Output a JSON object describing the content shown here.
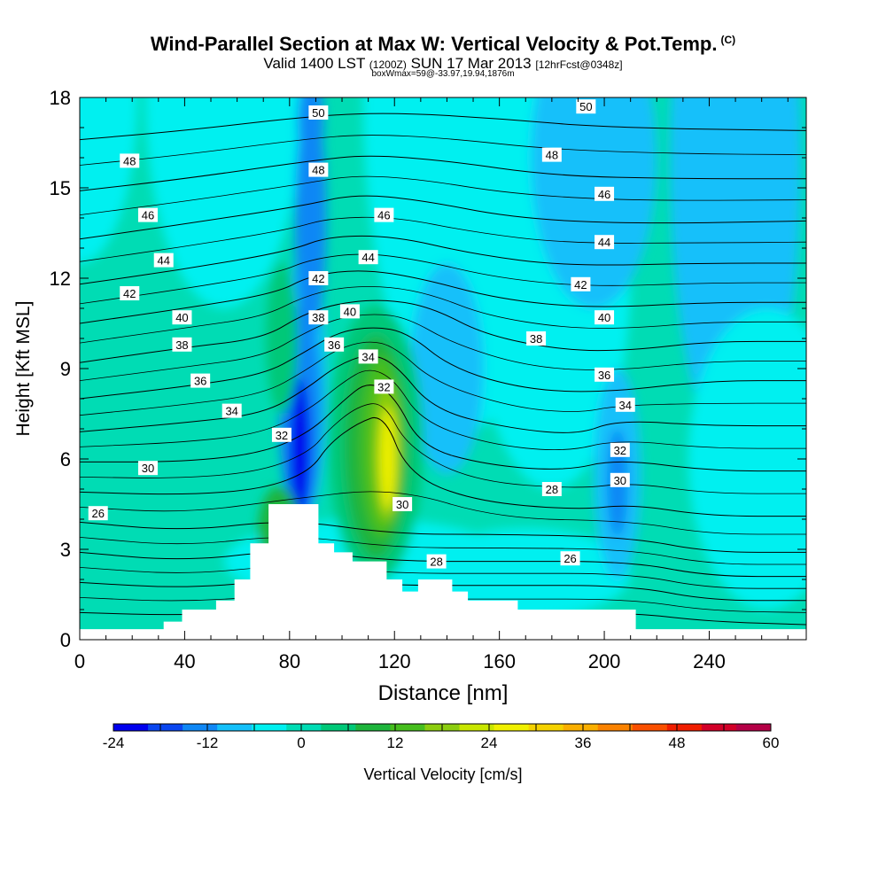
{
  "header": {
    "title": "Wind-Parallel Section at Max W: Vertical Velocity & Pot.Temp.",
    "title_tag": "(C)",
    "valid_main": "Valid 1400 LST",
    "valid_zulu": "(1200Z)",
    "valid_date": "SUN 17 Mar 2013",
    "forecast": "[12hrFcst@0348z]",
    "box_info": "boxWmax=59@-33.97,19.94,1876m"
  },
  "chart_data": {
    "type": "heatmap",
    "xlabel": "Distance [nm]",
    "ylabel": "Height [Kft MSL]",
    "xlim": [
      0,
      277
    ],
    "ylim": [
      0,
      18
    ],
    "x_ticks": [
      "0",
      "40",
      "80",
      "120",
      "160",
      "200",
      "240"
    ],
    "x_tick_values": [
      0,
      40,
      80,
      120,
      160,
      200,
      240
    ],
    "y_ticks": [
      "0",
      "3",
      "6",
      "9",
      "12",
      "15",
      "18"
    ],
    "y_tick_values": [
      0,
      3,
      6,
      9,
      12,
      15,
      18
    ],
    "colorbar": {
      "label": "Vertical Velocity [cm/s]",
      "min": -24,
      "max": 60,
      "step": 6,
      "tick_labels": [
        "-24",
        "-12",
        "0",
        "12",
        "24",
        "36",
        "48",
        "60"
      ],
      "colors": [
        "#0000ee",
        "#0a46f0",
        "#0f87f5",
        "#14c0fa",
        "#00f0f0",
        "#00dcb4",
        "#00c878",
        "#1eb43c",
        "#46be1e",
        "#8ccd0f",
        "#c8e600",
        "#f0f000",
        "#f5d200",
        "#faaf00",
        "#fa8200",
        "#fa5000",
        "#f01e00",
        "#d20028",
        "#b40046"
      ]
    },
    "terrain": [
      [
        0,
        0.35
      ],
      [
        32,
        0.35
      ],
      [
        32,
        0.6
      ],
      [
        39,
        0.6
      ],
      [
        39,
        1.0
      ],
      [
        52,
        1.0
      ],
      [
        52,
        1.3
      ],
      [
        59,
        1.3
      ],
      [
        59,
        2.0
      ],
      [
        65,
        2.0
      ],
      [
        65,
        3.2
      ],
      [
        72,
        3.2
      ],
      [
        72,
        4.5
      ],
      [
        91,
        4.5
      ],
      [
        91,
        3.2
      ],
      [
        97,
        3.2
      ],
      [
        97,
        2.9
      ],
      [
        104,
        2.9
      ],
      [
        104,
        2.6
      ],
      [
        117,
        2.6
      ],
      [
        117,
        2.0
      ],
      [
        123,
        2.0
      ],
      [
        123,
        1.6
      ],
      [
        129,
        1.6
      ],
      [
        129,
        2.0
      ],
      [
        142,
        2.0
      ],
      [
        142,
        1.6
      ],
      [
        148,
        1.6
      ],
      [
        148,
        1.3
      ],
      [
        167,
        1.3
      ],
      [
        167,
        1.0
      ],
      [
        212,
        1.0
      ],
      [
        212,
        0.35
      ],
      [
        277,
        0.35
      ]
    ],
    "contours": [
      {
        "theta": 24,
        "pts": [
          [
            0,
            0.9
          ],
          [
            40,
            0.8
          ],
          [
            80,
            1.0
          ],
          [
            120,
            0.9
          ],
          [
            160,
            0.9
          ],
          [
            210,
            0.9
          ],
          [
            240,
            0.6
          ],
          [
            277,
            0.5
          ]
        ]
      },
      {
        "theta": 26,
        "pts": [
          [
            0,
            1.9
          ],
          [
            40,
            1.7
          ],
          [
            80,
            2.0
          ],
          [
            120,
            1.8
          ],
          [
            160,
            1.8
          ],
          [
            210,
            1.8
          ],
          [
            240,
            1.3
          ],
          [
            277,
            1.3
          ]
        ]
      },
      {
        "theta": 28,
        "pts": [
          [
            0,
            2.9
          ],
          [
            40,
            2.6
          ],
          [
            80,
            3.0
          ],
          [
            120,
            2.6
          ],
          [
            160,
            2.6
          ],
          [
            210,
            2.6
          ],
          [
            240,
            2.1
          ],
          [
            277,
            2.1
          ]
        ]
      },
      {
        "theta": 30,
        "pts": [
          [
            0,
            3.9
          ],
          [
            40,
            3.6
          ],
          [
            80,
            4.0
          ],
          [
            120,
            3.5
          ],
          [
            160,
            3.5
          ],
          [
            210,
            3.4
          ],
          [
            240,
            2.9
          ],
          [
            277,
            2.9
          ]
        ]
      },
      {
        "theta": 32,
        "pts": [
          [
            0,
            4.9
          ],
          [
            40,
            4.8
          ],
          [
            70,
            5.0
          ],
          [
            88,
            5.6
          ],
          [
            95,
            6.5
          ],
          [
            106,
            7.2
          ],
          [
            116,
            7.5
          ],
          [
            125,
            5.5
          ],
          [
            150,
            4.6
          ],
          [
            190,
            4.3
          ],
          [
            210,
            4.5
          ],
          [
            240,
            4.1
          ],
          [
            277,
            4.1
          ]
        ]
      },
      {
        "theta": 34,
        "pts": [
          [
            0,
            5.9
          ],
          [
            40,
            5.9
          ],
          [
            70,
            6.2
          ],
          [
            88,
            6.9
          ],
          [
            100,
            7.9
          ],
          [
            110,
            8.6
          ],
          [
            120,
            8.1
          ],
          [
            130,
            6.4
          ],
          [
            155,
            5.8
          ],
          [
            185,
            5.6
          ],
          [
            205,
            6.0
          ],
          [
            240,
            5.6
          ],
          [
            277,
            5.6
          ]
        ]
      },
      {
        "theta": 36,
        "pts": [
          [
            0,
            6.9
          ],
          [
            40,
            7.2
          ],
          [
            70,
            7.5
          ],
          [
            86,
            8.3
          ],
          [
            98,
            9.1
          ],
          [
            110,
            9.5
          ],
          [
            120,
            9.2
          ],
          [
            135,
            7.6
          ],
          [
            165,
            7.0
          ],
          [
            190,
            6.8
          ],
          [
            205,
            7.3
          ],
          [
            240,
            7.1
          ],
          [
            277,
            7.1
          ]
        ]
      },
      {
        "theta": 38,
        "pts": [
          [
            0,
            8.0
          ],
          [
            40,
            8.4
          ],
          [
            70,
            8.8
          ],
          [
            85,
            9.5
          ],
          [
            98,
            10.2
          ],
          [
            112,
            10.4
          ],
          [
            125,
            10.2
          ],
          [
            142,
            9.0
          ],
          [
            170,
            8.3
          ],
          [
            200,
            8.2
          ],
          [
            240,
            8.6
          ],
          [
            277,
            8.6
          ]
        ]
      },
      {
        "theta": 40,
        "pts": [
          [
            0,
            9.2
          ],
          [
            40,
            9.7
          ],
          [
            70,
            10.0
          ],
          [
            85,
            10.8
          ],
          [
            100,
            11.2
          ],
          [
            118,
            11.3
          ],
          [
            135,
            11.0
          ],
          [
            155,
            10.1
          ],
          [
            185,
            9.6
          ],
          [
            210,
            9.6
          ],
          [
            240,
            9.9
          ],
          [
            277,
            9.9
          ]
        ]
      },
      {
        "theta": 42,
        "pts": [
          [
            0,
            10.5
          ],
          [
            40,
            11.0
          ],
          [
            75,
            11.5
          ],
          [
            88,
            12.1
          ],
          [
            108,
            12.3
          ],
          [
            130,
            12.0
          ],
          [
            160,
            11.3
          ],
          [
            195,
            11.0
          ],
          [
            240,
            11.2
          ],
          [
            277,
            11.2
          ]
        ]
      },
      {
        "theta": 44,
        "pts": [
          [
            0,
            11.8
          ],
          [
            40,
            12.3
          ],
          [
            80,
            12.9
          ],
          [
            95,
            13.4
          ],
          [
            120,
            13.4
          ],
          [
            150,
            12.8
          ],
          [
            185,
            12.4
          ],
          [
            240,
            12.5
          ],
          [
            277,
            12.5
          ]
        ]
      },
      {
        "theta": 46,
        "pts": [
          [
            0,
            13.3
          ],
          [
            40,
            13.8
          ],
          [
            85,
            14.4
          ],
          [
            105,
            14.8
          ],
          [
            130,
            14.6
          ],
          [
            165,
            14.0
          ],
          [
            210,
            13.8
          ],
          [
            277,
            13.9
          ]
        ]
      },
      {
        "theta": 48,
        "pts": [
          [
            0,
            14.9
          ],
          [
            40,
            15.3
          ],
          [
            88,
            15.9
          ],
          [
            110,
            16.1
          ],
          [
            140,
            15.9
          ],
          [
            180,
            15.4
          ],
          [
            230,
            15.3
          ],
          [
            277,
            15.3
          ]
        ]
      },
      {
        "theta": 50,
        "pts": [
          [
            0,
            16.6
          ],
          [
            40,
            16.9
          ],
          [
            90,
            17.4
          ],
          [
            120,
            17.5
          ],
          [
            160,
            17.3
          ],
          [
            200,
            17.0
          ],
          [
            277,
            16.9
          ]
        ]
      }
    ],
    "contour_labels": [
      {
        "text": "26",
        "x": 7,
        "y": 4.2
      },
      {
        "text": "30",
        "x": 26,
        "y": 5.7
      },
      {
        "text": "32",
        "x": 77,
        "y": 6.8
      },
      {
        "text": "34",
        "x": 58,
        "y": 7.6
      },
      {
        "text": "36",
        "x": 46,
        "y": 8.6
      },
      {
        "text": "38",
        "x": 39,
        "y": 9.8
      },
      {
        "text": "40",
        "x": 39,
        "y": 10.7
      },
      {
        "text": "42",
        "x": 19,
        "y": 11.5
      },
      {
        "text": "44",
        "x": 32,
        "y": 12.6
      },
      {
        "text": "46",
        "x": 26,
        "y": 14.1
      },
      {
        "text": "48",
        "x": 19,
        "y": 15.9
      },
      {
        "text": "50",
        "x": 91,
        "y": 17.5
      },
      {
        "text": "48",
        "x": 91,
        "y": 15.6
      },
      {
        "text": "46",
        "x": 116,
        "y": 14.1
      },
      {
        "text": "44",
        "x": 110,
        "y": 12.7
      },
      {
        "text": "42",
        "x": 91,
        "y": 12.0
      },
      {
        "text": "40",
        "x": 103,
        "y": 10.9
      },
      {
        "text": "38",
        "x": 91,
        "y": 10.7
      },
      {
        "text": "36",
        "x": 97,
        "y": 9.8
      },
      {
        "text": "34",
        "x": 110,
        "y": 9.4
      },
      {
        "text": "32",
        "x": 116,
        "y": 8.4
      },
      {
        "text": "30",
        "x": 123,
        "y": 4.5
      },
      {
        "text": "28",
        "x": 136,
        "y": 2.6
      },
      {
        "text": "26",
        "x": 187,
        "y": 2.7
      },
      {
        "text": "28",
        "x": 180,
        "y": 5.0
      },
      {
        "text": "30",
        "x": 206,
        "y": 5.3
      },
      {
        "text": "32",
        "x": 206,
        "y": 6.3
      },
      {
        "text": "34",
        "x": 208,
        "y": 7.8
      },
      {
        "text": "36",
        "x": 200,
        "y": 8.8
      },
      {
        "text": "38",
        "x": 174,
        "y": 10.0
      },
      {
        "text": "40",
        "x": 200,
        "y": 10.7
      },
      {
        "text": "42",
        "x": 191,
        "y": 11.8
      },
      {
        "text": "44",
        "x": 200,
        "y": 13.2
      },
      {
        "text": "46",
        "x": 200,
        "y": 14.8
      },
      {
        "text": "48",
        "x": 180,
        "y": 16.1
      },
      {
        "text": "50",
        "x": 193,
        "y": 17.7
      }
    ]
  }
}
